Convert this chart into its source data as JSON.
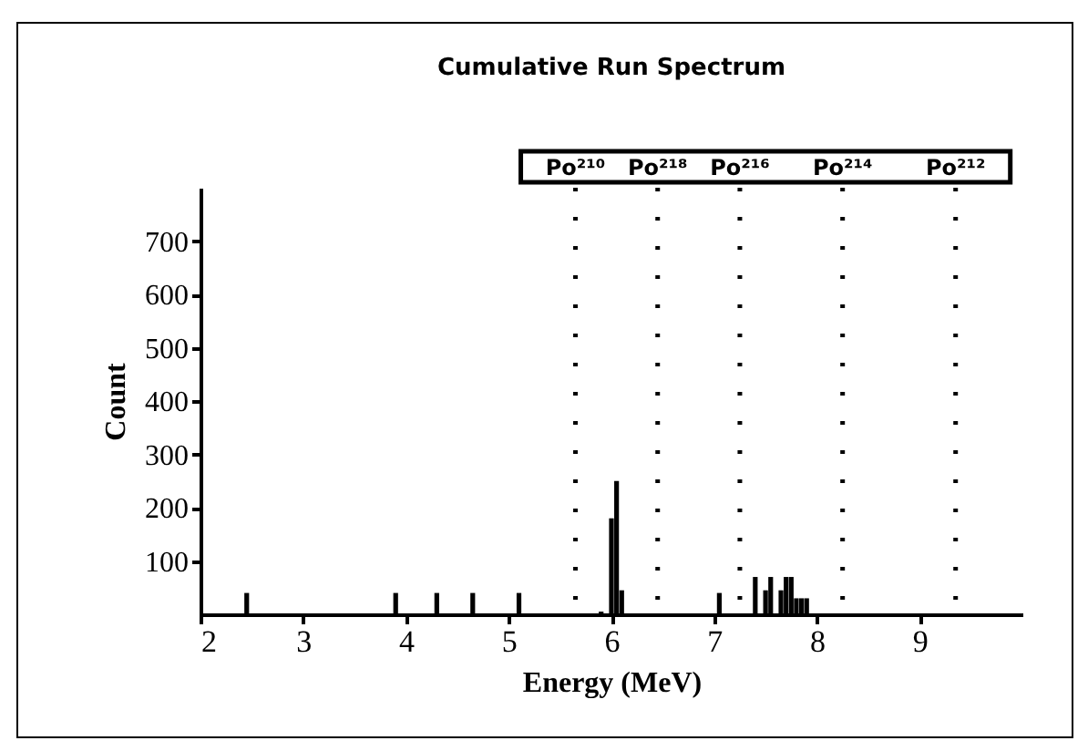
{
  "chart_data": {
    "type": "bar",
    "title": "Cumulative Run Spectrum",
    "xlabel": "Energy (MeV)",
    "ylabel": "Count",
    "x": [
      2.45,
      3.9,
      4.3,
      4.65,
      5.1,
      5.9,
      6.0,
      6.05,
      6.1,
      7.05,
      7.4,
      7.5,
      7.55,
      7.65,
      7.7,
      7.75,
      7.8,
      7.85,
      7.9
    ],
    "values": [
      40,
      40,
      40,
      40,
      40,
      5,
      180,
      250,
      45,
      40,
      70,
      45,
      70,
      45,
      70,
      70,
      30,
      30,
      30
    ],
    "color": "#000000",
    "xlim": [
      2,
      10
    ],
    "xticks": [
      2,
      3,
      4,
      5,
      6,
      7,
      8,
      9
    ],
    "ylim": [
      0,
      800
    ],
    "yticks": [
      100,
      200,
      300,
      400,
      500,
      600,
      700
    ],
    "grid": false,
    "ref_lines": [
      {
        "axis": "x",
        "value": 5.65,
        "label": "Po²¹⁰",
        "line_style": "dotted",
        "color": "#000000"
      },
      {
        "axis": "x",
        "value": 6.45,
        "label": "Po²¹⁸",
        "line_style": "dotted",
        "color": "#000000"
      },
      {
        "axis": "x",
        "value": 7.25,
        "label": "Po²¹⁶",
        "line_style": "dotted",
        "color": "#000000"
      },
      {
        "axis": "x",
        "value": 8.25,
        "label": "Po²¹⁴",
        "line_style": "dotted",
        "color": "#000000"
      },
      {
        "axis": "x",
        "value": 9.35,
        "label": "Po²¹²",
        "line_style": "dotted",
        "color": "#000000"
      }
    ]
  }
}
